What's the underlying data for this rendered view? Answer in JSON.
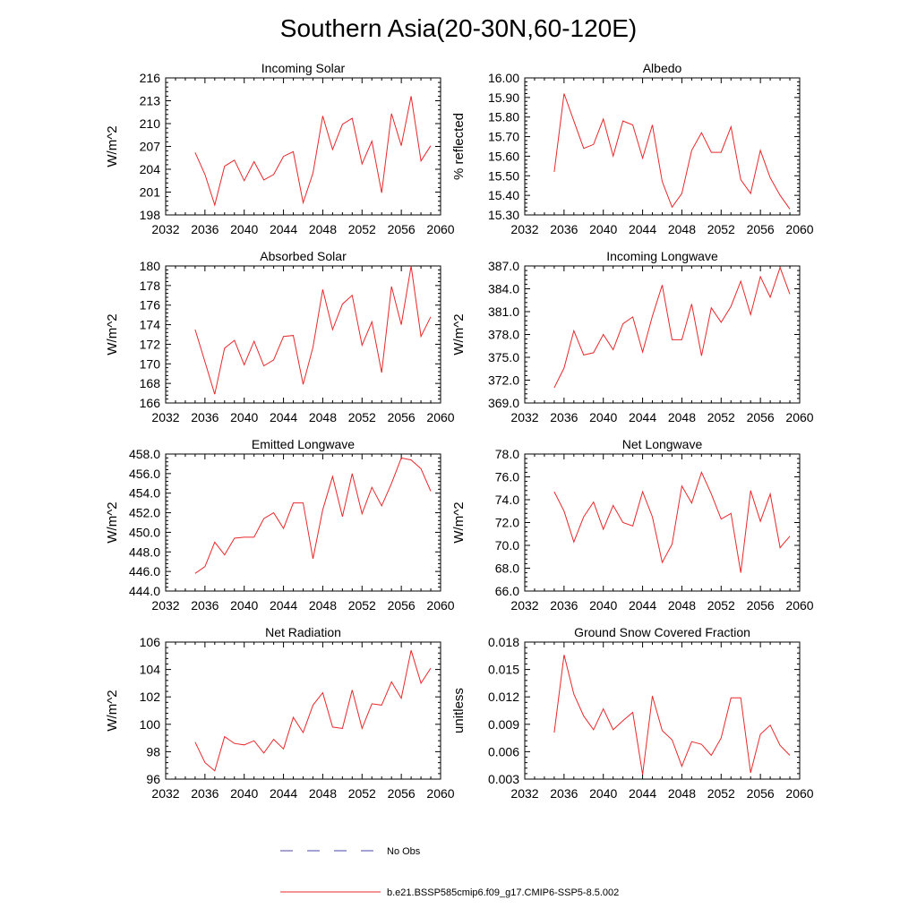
{
  "figure_title": "Southern Asia(20-30N,60-120E)",
  "legend": {
    "entries": [
      {
        "label": "No Obs",
        "color": "#4a4aa8",
        "style": "dashed"
      },
      {
        "label": "b.e21.BSSP585cmip6.f09_g17.CMIP6-SSP5-8.5.002",
        "color": "#e8282b",
        "style": "solid"
      }
    ]
  },
  "chart_data": [
    {
      "type": "line",
      "title": "Incoming Solar",
      "ylabel": "W/m^2",
      "xlim": [
        2032,
        2060
      ],
      "ylim": [
        198,
        216
      ],
      "xticks": [
        2032,
        2036,
        2040,
        2044,
        2048,
        2052,
        2056,
        2060
      ],
      "yticks": [
        198,
        201,
        204,
        207,
        210,
        213,
        216
      ],
      "ytick_labels": [
        "198",
        "201",
        "204",
        "207",
        "210",
        "213",
        "216"
      ],
      "series": [
        {
          "color": "#e8282b",
          "x": [
            2035,
            2036,
            2037,
            2038,
            2039,
            2040,
            2041,
            2042,
            2043,
            2044,
            2045,
            2046,
            2047,
            2048,
            2049,
            2050,
            2051,
            2052,
            2053,
            2054,
            2055,
            2056,
            2057,
            2058,
            2059
          ],
          "values": [
            206.2,
            203.3,
            199.3,
            204.4,
            205.2,
            202.5,
            205.0,
            202.6,
            203.3,
            205.7,
            206.3,
            199.6,
            203.5,
            211.0,
            206.6,
            209.9,
            210.7,
            204.7,
            207.7,
            200.9,
            211.3,
            207.1,
            213.6,
            205.1,
            207.1
          ]
        }
      ]
    },
    {
      "type": "line",
      "title": "Albedo",
      "ylabel": "% reflected",
      "xlim": [
        2032,
        2060
      ],
      "ylim": [
        15.3,
        16.0
      ],
      "xticks": [
        2032,
        2036,
        2040,
        2044,
        2048,
        2052,
        2056,
        2060
      ],
      "yticks": [
        15.3,
        15.4,
        15.5,
        15.6,
        15.7,
        15.8,
        15.9,
        16.0
      ],
      "ytick_labels": [
        "15.30",
        "15.40",
        "15.50",
        "15.60",
        "15.70",
        "15.80",
        "15.90",
        "16.00"
      ],
      "series": [
        {
          "color": "#e8282b",
          "x": [
            2035,
            2036,
            2037,
            2038,
            2039,
            2040,
            2041,
            2042,
            2043,
            2044,
            2045,
            2046,
            2047,
            2048,
            2049,
            2050,
            2051,
            2052,
            2053,
            2054,
            2055,
            2056,
            2057,
            2058,
            2059
          ],
          "values": [
            15.52,
            15.92,
            15.78,
            15.64,
            15.66,
            15.79,
            15.6,
            15.78,
            15.76,
            15.59,
            15.76,
            15.47,
            15.34,
            15.41,
            15.63,
            15.72,
            15.62,
            15.62,
            15.75,
            15.48,
            15.41,
            15.63,
            15.49,
            15.4,
            15.33
          ]
        }
      ]
    },
    {
      "type": "line",
      "title": "Absorbed Solar",
      "ylabel": "W/m^2",
      "xlim": [
        2032,
        2060
      ],
      "ylim": [
        166,
        180
      ],
      "xticks": [
        2032,
        2036,
        2040,
        2044,
        2048,
        2052,
        2056,
        2060
      ],
      "yticks": [
        166,
        168,
        170,
        172,
        174,
        176,
        178,
        180
      ],
      "ytick_labels": [
        "166",
        "168",
        "170",
        "172",
        "174",
        "176",
        "178",
        "180"
      ],
      "series": [
        {
          "color": "#e8282b",
          "x": [
            2035,
            2036,
            2037,
            2038,
            2039,
            2040,
            2041,
            2042,
            2043,
            2044,
            2045,
            2046,
            2047,
            2048,
            2049,
            2050,
            2051,
            2052,
            2053,
            2054,
            2055,
            2056,
            2057,
            2058,
            2059
          ],
          "values": [
            173.5,
            170.2,
            166.9,
            171.6,
            172.4,
            169.9,
            172.3,
            169.8,
            170.4,
            172.8,
            172.9,
            167.9,
            171.7,
            177.6,
            173.5,
            176.1,
            177.0,
            171.9,
            174.3,
            169.1,
            177.9,
            174.0,
            180.0,
            172.8,
            174.8
          ]
        }
      ]
    },
    {
      "type": "line",
      "title": "Incoming Longwave",
      "ylabel": "W/m^2",
      "xlim": [
        2032,
        2060
      ],
      "ylim": [
        369,
        387
      ],
      "xticks": [
        2032,
        2036,
        2040,
        2044,
        2048,
        2052,
        2056,
        2060
      ],
      "yticks": [
        369,
        372,
        375,
        378,
        381,
        384,
        387
      ],
      "ytick_labels": [
        "369.0",
        "372.0",
        "375.0",
        "378.0",
        "381.0",
        "384.0",
        "387.0"
      ],
      "series": [
        {
          "color": "#e8282b",
          "x": [
            2035,
            2036,
            2037,
            2038,
            2039,
            2040,
            2041,
            2042,
            2043,
            2044,
            2045,
            2046,
            2047,
            2048,
            2049,
            2050,
            2051,
            2052,
            2053,
            2054,
            2055,
            2056,
            2057,
            2058,
            2059
          ],
          "values": [
            371.0,
            373.6,
            378.5,
            375.3,
            375.6,
            378.0,
            376.0,
            379.4,
            380.3,
            375.7,
            380.4,
            384.5,
            377.3,
            377.3,
            382.0,
            375.2,
            381.5,
            379.6,
            381.7,
            385.0,
            380.6,
            385.6,
            382.9,
            386.8,
            383.3
          ]
        }
      ]
    },
    {
      "type": "line",
      "title": "Emitted Longwave",
      "ylabel": "W/m^2",
      "xlim": [
        2032,
        2060
      ],
      "ylim": [
        444,
        458
      ],
      "xticks": [
        2032,
        2036,
        2040,
        2044,
        2048,
        2052,
        2056,
        2060
      ],
      "yticks": [
        444,
        446,
        448,
        450,
        452,
        454,
        456,
        458
      ],
      "ytick_labels": [
        "444.0",
        "446.0",
        "448.0",
        "450.0",
        "452.0",
        "454.0",
        "456.0",
        "458.0"
      ],
      "series": [
        {
          "color": "#e8282b",
          "x": [
            2035,
            2036,
            2037,
            2038,
            2039,
            2040,
            2041,
            2042,
            2043,
            2044,
            2045,
            2046,
            2047,
            2048,
            2049,
            2050,
            2051,
            2052,
            2053,
            2054,
            2055,
            2056,
            2057,
            2058,
            2059
          ],
          "values": [
            445.8,
            446.5,
            449.0,
            447.7,
            449.4,
            449.5,
            449.5,
            451.4,
            452.0,
            450.4,
            453.0,
            453.0,
            447.3,
            452.3,
            455.7,
            451.6,
            456.0,
            451.9,
            454.6,
            452.7,
            455.0,
            457.6,
            457.4,
            456.5,
            454.2
          ]
        }
      ]
    },
    {
      "type": "line",
      "title": "Net Longwave",
      "ylabel": "W/m^2",
      "xlim": [
        2032,
        2060
      ],
      "ylim": [
        66,
        78
      ],
      "xticks": [
        2032,
        2036,
        2040,
        2044,
        2048,
        2052,
        2056,
        2060
      ],
      "yticks": [
        66,
        68,
        70,
        72,
        74,
        76,
        78
      ],
      "ytick_labels": [
        "66.0",
        "68.0",
        "70.0",
        "72.0",
        "74.0",
        "76.0",
        "78.0"
      ],
      "series": [
        {
          "color": "#e8282b",
          "x": [
            2035,
            2036,
            2037,
            2038,
            2039,
            2040,
            2041,
            2042,
            2043,
            2044,
            2045,
            2046,
            2047,
            2048,
            2049,
            2050,
            2051,
            2052,
            2053,
            2054,
            2055,
            2056,
            2057,
            2058,
            2059
          ],
          "values": [
            74.7,
            73.0,
            70.3,
            72.5,
            73.8,
            71.4,
            73.5,
            72.0,
            71.7,
            74.7,
            72.5,
            68.5,
            70.1,
            75.2,
            73.7,
            76.4,
            74.5,
            72.3,
            72.8,
            67.6,
            74.8,
            72.1,
            74.5,
            69.8,
            70.8
          ]
        }
      ]
    },
    {
      "type": "line",
      "title": "Net Radiation",
      "ylabel": "W/m^2",
      "xlim": [
        2032,
        2060
      ],
      "ylim": [
        96,
        106
      ],
      "xticks": [
        2032,
        2036,
        2040,
        2044,
        2048,
        2052,
        2056,
        2060
      ],
      "yticks": [
        96,
        98,
        100,
        102,
        104,
        106
      ],
      "ytick_labels": [
        "96",
        "98",
        "100",
        "102",
        "104",
        "106"
      ],
      "series": [
        {
          "color": "#e8282b",
          "x": [
            2035,
            2036,
            2037,
            2038,
            2039,
            2040,
            2041,
            2042,
            2043,
            2044,
            2045,
            2046,
            2047,
            2048,
            2049,
            2050,
            2051,
            2052,
            2053,
            2054,
            2055,
            2056,
            2057,
            2058,
            2059
          ],
          "values": [
            98.7,
            97.2,
            96.6,
            99.1,
            98.6,
            98.5,
            98.8,
            97.9,
            98.9,
            98.2,
            100.5,
            99.4,
            101.4,
            102.3,
            99.8,
            99.7,
            102.5,
            99.7,
            101.5,
            101.4,
            103.1,
            101.9,
            105.4,
            103.0,
            104.1
          ]
        }
      ]
    },
    {
      "type": "line",
      "title": "Ground Snow Covered Fraction",
      "ylabel": "unitless",
      "xlim": [
        2032,
        2060
      ],
      "ylim": [
        0.003,
        0.018
      ],
      "xticks": [
        2032,
        2036,
        2040,
        2044,
        2048,
        2052,
        2056,
        2060
      ],
      "yticks": [
        0.003,
        0.006,
        0.009,
        0.012,
        0.015,
        0.018
      ],
      "ytick_labels": [
        "0.003",
        "0.006",
        "0.009",
        "0.012",
        "0.015",
        "0.018"
      ],
      "series": [
        {
          "color": "#e8282b",
          "x": [
            2035,
            2036,
            2037,
            2038,
            2039,
            2040,
            2041,
            2042,
            2043,
            2044,
            2045,
            2046,
            2047,
            2048,
            2049,
            2050,
            2051,
            2052,
            2053,
            2054,
            2055,
            2056,
            2057,
            2058,
            2059
          ],
          "values": [
            0.0081,
            0.0166,
            0.0123,
            0.0099,
            0.0084,
            0.0107,
            0.0084,
            0.0094,
            0.0103,
            0.0035,
            0.0121,
            0.0083,
            0.0073,
            0.0044,
            0.0071,
            0.0068,
            0.0056,
            0.0075,
            0.0119,
            0.0119,
            0.0037,
            0.0079,
            0.0089,
            0.0067,
            0.0056
          ]
        }
      ]
    }
  ]
}
